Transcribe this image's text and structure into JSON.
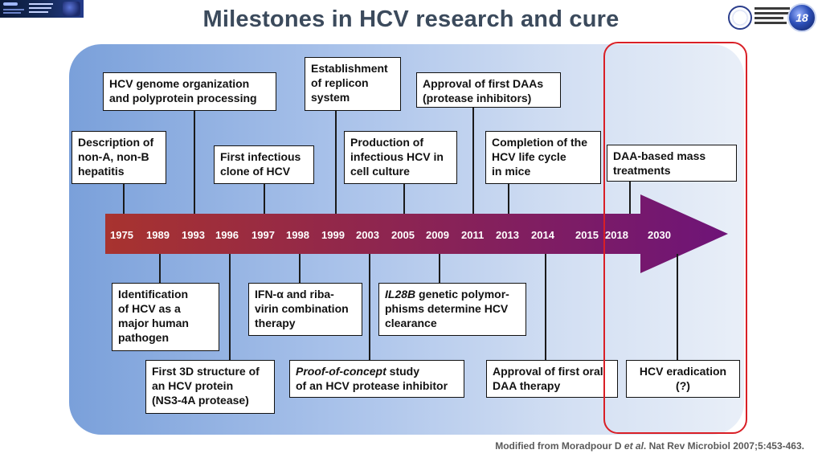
{
  "header": {
    "title": "Milestones in HCV research and cure",
    "left_logo": "hcv-elimination-conference-logo",
    "right_logo": "universita-degli-studi-di-palermo-logo",
    "right_logo_text": "UNIVERSITÀ DEGLI STUDI DI PALERMO",
    "right_badge_text": "18"
  },
  "timeline": {
    "years": [
      "1975",
      "1989",
      "1993",
      "1996",
      "1997",
      "1998",
      "1999",
      "2003",
      "2005",
      "2009",
      "2011",
      "2013",
      "2014",
      "2015",
      "2018",
      "2030"
    ]
  },
  "events_above": [
    {
      "year": "1975",
      "text": "Description of\nnon-A, non-B\nhepatitis"
    },
    {
      "year": "1993",
      "text": "HCV genome organization\nand polyprotein processing"
    },
    {
      "year": "1997",
      "text": "First infectious\nclone of HCV"
    },
    {
      "year": "1999",
      "text": "Establishment\nof replicon\nsystem"
    },
    {
      "year": "2005",
      "text": "Production of\ninfectious HCV in\ncell culture"
    },
    {
      "year": "2011",
      "text": "Approval of first DAAs\n(protease inhibitors)"
    },
    {
      "year": "2013",
      "text": "Completion of the\nHCV life cycle\nin mice"
    },
    {
      "year": "2018",
      "text": "DAA-based mass\ntreatments"
    }
  ],
  "events_below": [
    {
      "year": "1989",
      "text": "Identification\nof HCV as a\nmajor human\npathogen"
    },
    {
      "year": "1996",
      "text": "First 3D structure of\nan HCV protein\n(NS3-4A protease)"
    },
    {
      "year": "1998",
      "text": "IFN-α and riba-\nvirin combination\ntherapy"
    },
    {
      "year": "2003",
      "italic": "Proof-of-concept",
      "text": " study\nof an HCV protease inhibitor"
    },
    {
      "year": "2009",
      "italic": "IL28B",
      "text": " genetic polymor-\nphisms determine HCV\nclearance"
    },
    {
      "year": "2014",
      "text": "Approval of first oral\nDAA therapy"
    },
    {
      "year": "2030",
      "text": "HCV eradication\n(?)"
    }
  ],
  "citation": {
    "pre": "Modified from Moradpour D ",
    "italic": "et al",
    "post": ". Nat Rev Microbiol 2007;5:453-463."
  },
  "colors": {
    "arrow_start": "#a8332f",
    "arrow_end": "#6e1478",
    "highlight_frame": "#d91f26",
    "title": "#3b4a5c"
  }
}
